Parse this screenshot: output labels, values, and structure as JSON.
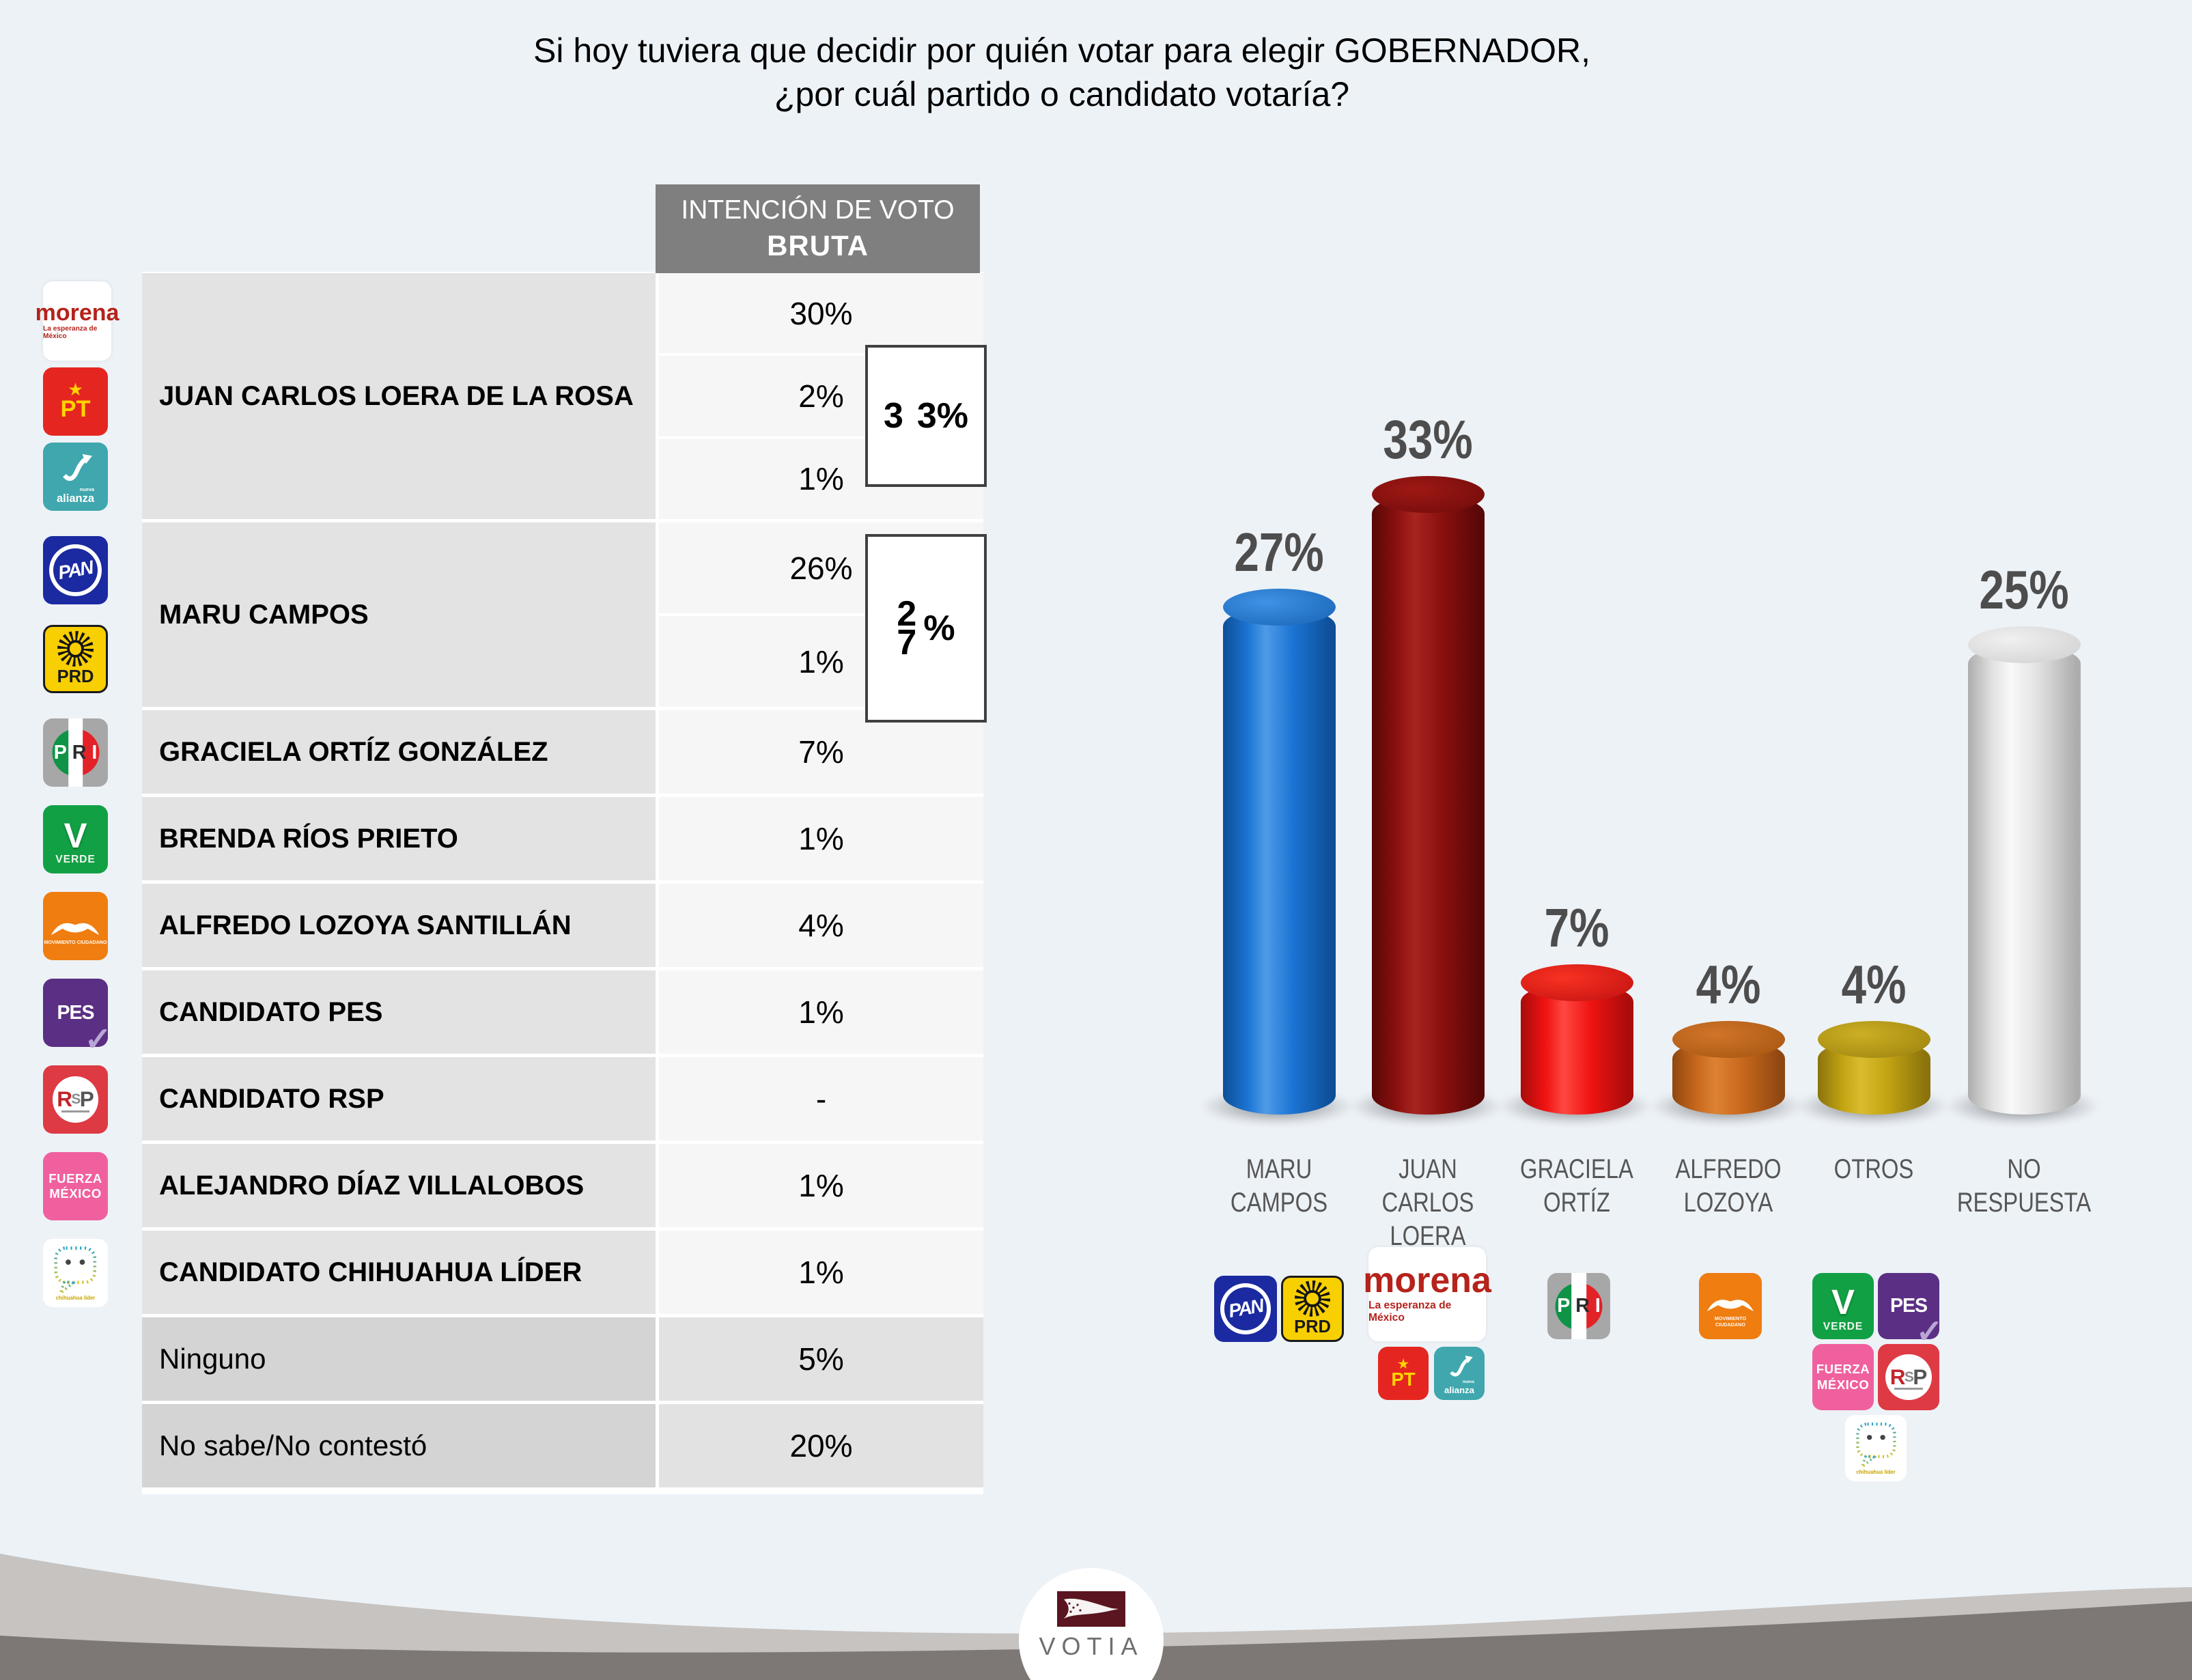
{
  "title": {
    "line1": "Si hoy tuviera que decidir por quién votar para elegir GOBERNADOR,",
    "line2": "¿por cuál partido o candidato votaría?"
  },
  "table": {
    "header": {
      "line1": "INTENCIÓN DE VOTO",
      "line2": "BRUTA"
    },
    "rows": [
      {
        "name": "JUAN CARLOS LOERA DE LA ROSA",
        "values": [
          "30%",
          "2%",
          "1%"
        ],
        "combined": "33%",
        "combined_display": {
          "part1": "3",
          "part2": "3%"
        }
      },
      {
        "name": "MARU CAMPOS",
        "values": [
          "26%",
          "1%"
        ],
        "combined": "27%",
        "combined_display": {
          "part1": "2",
          "part2": "7",
          "part3": "%"
        }
      },
      {
        "name": "GRACIELA ORTÍZ GONZÁLEZ",
        "values": [
          "7%"
        ]
      },
      {
        "name": "BRENDA RÍOS PRIETO",
        "values": [
          "1%"
        ]
      },
      {
        "name": "ALFREDO LOZOYA SANTILLÁN",
        "values": [
          "4%"
        ]
      },
      {
        "name": "CANDIDATO PES",
        "values": [
          "1%"
        ]
      },
      {
        "name": "CANDIDATO RSP",
        "values": [
          "-"
        ]
      },
      {
        "name": "ALEJANDRO DÍAZ VILLALOBOS",
        "values": [
          "1%"
        ]
      },
      {
        "name": "CANDIDATO CHIHUAHUA LÍDER",
        "values": [
          "1%"
        ]
      },
      {
        "name": "Ninguno",
        "values": [
          "5%"
        ]
      },
      {
        "name": "No sabe/No contestó",
        "values": [
          "20%"
        ]
      }
    ]
  },
  "chart_data": {
    "type": "bar",
    "style": "3d-cylinder",
    "title": "",
    "xlabel": "",
    "ylabel": "",
    "grid": false,
    "legend": false,
    "ylim": [
      0,
      35
    ],
    "categories": [
      "MARU CAMPOS",
      "JUAN CARLOS LOERA",
      "GRACIELA ORTÍZ",
      "ALFREDO LOZOYA",
      "OTROS",
      "NO RESPUESTA"
    ],
    "categories_lines": [
      [
        "MARU",
        "CAMPOS"
      ],
      [
        "JUAN",
        "CARLOS",
        "LOERA"
      ],
      [
        "GRACIELA",
        "ORTÍZ"
      ],
      [
        "ALFREDO",
        "LOZOYA"
      ],
      [
        "OTROS"
      ],
      [
        "NO",
        "RESPUESTA"
      ]
    ],
    "values": [
      27,
      33,
      7,
      4,
      4,
      25
    ],
    "labels": [
      "27%",
      "33%",
      "7%",
      "4%",
      "4%",
      "25%"
    ],
    "label_color": "#4d4d4d",
    "category_color": "#565656",
    "bar_colors": [
      {
        "main": "#1b74d3",
        "dark": "#0d4e97",
        "light": "#4e9be8",
        "cap_light": "#3f92e6",
        "cap_dark": "#1663b4"
      },
      {
        "main": "#8a100e",
        "dark": "#570807",
        "light": "#a82420",
        "cap_light": "#9e1814",
        "cap_dark": "#6e0b0a"
      },
      {
        "main": "#ef1311",
        "dark": "#a80c0b",
        "light": "#ff4742",
        "cap_light": "#f83222",
        "cap_dark": "#c11010"
      },
      {
        "main": "#c8681c",
        "dark": "#8f4711",
        "light": "#dd8233",
        "cap_light": "#d0752a",
        "cap_dark": "#a4540f"
      },
      {
        "main": "#c2a312",
        "dark": "#8a730c",
        "light": "#d9bc2e",
        "cap_light": "#ccaf24",
        "cap_dark": "#9a810d"
      },
      {
        "main": "#e2e2e2",
        "dark": "#adadad",
        "light": "#f9f9f9",
        "cap_light": "#f0f0f0",
        "cap_dark": "#cfcfcf"
      }
    ]
  },
  "parties": {
    "morena": {
      "name": "morena",
      "tagline": "La esperanza de México",
      "text_color": "#b5231b",
      "bg": "#ffffff"
    },
    "pt": {
      "label": "PT",
      "star": "★",
      "bg": "#e52620",
      "text_color": "#ffd400"
    },
    "alianza": {
      "label": "alianza",
      "sup": "nueva",
      "bg": "#3fa7ad",
      "text_color": "#ffffff"
    },
    "pan": {
      "label": "PAN",
      "bg": "#1b2aa0",
      "text_color": "#ffffff"
    },
    "prd": {
      "label": "PRD",
      "bg": "#f8cf01",
      "text_color": "#1a1a1a"
    },
    "pri": {
      "label": "PRI",
      "bg": "#a7a7a7",
      "green": "#0e9347",
      "red": "#e32228"
    },
    "verde": {
      "label": "VERDE",
      "initial": "V",
      "bg": "#12a045",
      "text_color": "#ffffff"
    },
    "mc": {
      "label": "MOVIMIENTO CIUDADANO",
      "bg": "#ef7d10",
      "text_color": "#ffffff"
    },
    "pes": {
      "label": "PES",
      "check": "✓",
      "bg": "#5b2f84",
      "text_color": "#ffffff",
      "check_color": "#b9a6d6"
    },
    "rsp": {
      "r": "R",
      "s": "S",
      "p": "P",
      "bg": "#de3a43",
      "r_color": "#c3242c",
      "p_color": "#555555"
    },
    "fm": {
      "line1": "FUERZA",
      "line2": "MÉXICO",
      "bg": "#f0609e",
      "text_color": "#ffffff"
    },
    "chl": {
      "label": "chihuahua líder",
      "bg": "#ffffff",
      "stroke1": "#2fa7c8",
      "stroke2": "#d8c32a",
      "text_color": "#c8a400"
    }
  },
  "footer": {
    "brand": "VOTIA",
    "brand_color": "#6f6f6f",
    "emblem_bg": "#5a1520",
    "swoosh_light": "#c6c3c0",
    "swoosh_dark": "#7d7875"
  }
}
